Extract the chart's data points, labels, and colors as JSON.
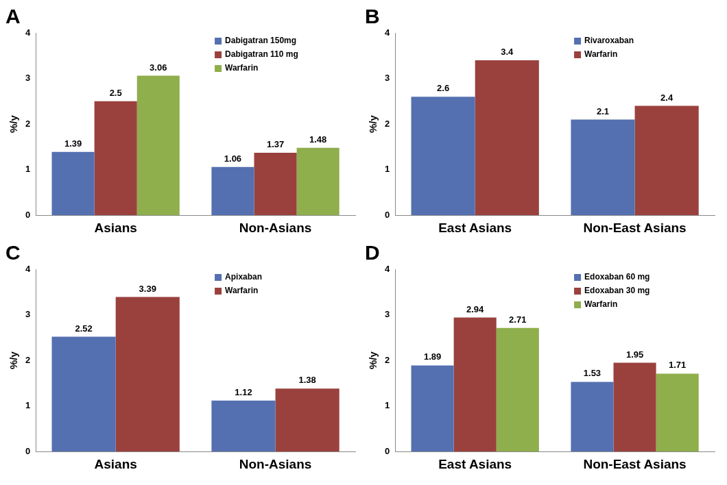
{
  "chart_data": [
    {
      "type": "bar",
      "title": "A",
      "ylabel": "%/y",
      "categories": [
        "Asians",
        "Non-Asians"
      ],
      "series": [
        {
          "name": "Dabigatran 150mg",
          "color": "#5470b0",
          "values": [
            1.39,
            1.06
          ]
        },
        {
          "name": "Dabigatran 110 mg",
          "color": "#9a413e",
          "values": [
            2.5,
            1.37
          ]
        },
        {
          "name": "Warfarin",
          "color": "#8fae4c",
          "values": [
            3.06,
            1.48
          ]
        }
      ],
      "ylim": [
        0,
        4
      ],
      "yticks": [
        0,
        1,
        2,
        3,
        4
      ],
      "grid": false,
      "legend": "top right",
      "data_labels": true
    },
    {
      "type": "bar",
      "title": "B",
      "ylabel": "%/y",
      "categories": [
        "East Asians",
        "Non-East Asians"
      ],
      "series": [
        {
          "name": "Rivaroxaban",
          "color": "#5470b0",
          "values": [
            2.6,
            2.1
          ]
        },
        {
          "name": "Warfarin",
          "color": "#9a413e",
          "values": [
            3.4,
            2.4
          ]
        }
      ],
      "ylim": [
        0,
        4
      ],
      "yticks": [
        0,
        1,
        2,
        3,
        4
      ],
      "grid": false,
      "legend": "top right",
      "data_labels": true
    },
    {
      "type": "bar",
      "title": "C",
      "ylabel": "%/y",
      "categories": [
        "Asians",
        "Non-Asians"
      ],
      "series": [
        {
          "name": "Apixaban",
          "color": "#5470b0",
          "values": [
            2.52,
            1.12
          ]
        },
        {
          "name": "Warfarin",
          "color": "#9a413e",
          "values": [
            3.39,
            1.38
          ]
        }
      ],
      "ylim": [
        0,
        4
      ],
      "yticks": [
        0,
        1,
        2,
        3,
        4
      ],
      "grid": false,
      "legend": "top right",
      "data_labels": true
    },
    {
      "type": "bar",
      "title": "D",
      "ylabel": "%/y",
      "categories": [
        "East Asians",
        "Non-East Asians"
      ],
      "series": [
        {
          "name": "Edoxaban 60 mg",
          "color": "#5470b0",
          "values": [
            1.89,
            1.53
          ]
        },
        {
          "name": "Edoxaban 30 mg",
          "color": "#9a413e",
          "values": [
            2.94,
            1.95
          ]
        },
        {
          "name": "Warfarin",
          "color": "#8fae4c",
          "values": [
            2.71,
            1.71
          ]
        }
      ],
      "ylim": [
        0,
        4
      ],
      "yticks": [
        0,
        1,
        2,
        3,
        4
      ],
      "grid": false,
      "legend": "top right",
      "data_labels": true
    }
  ]
}
